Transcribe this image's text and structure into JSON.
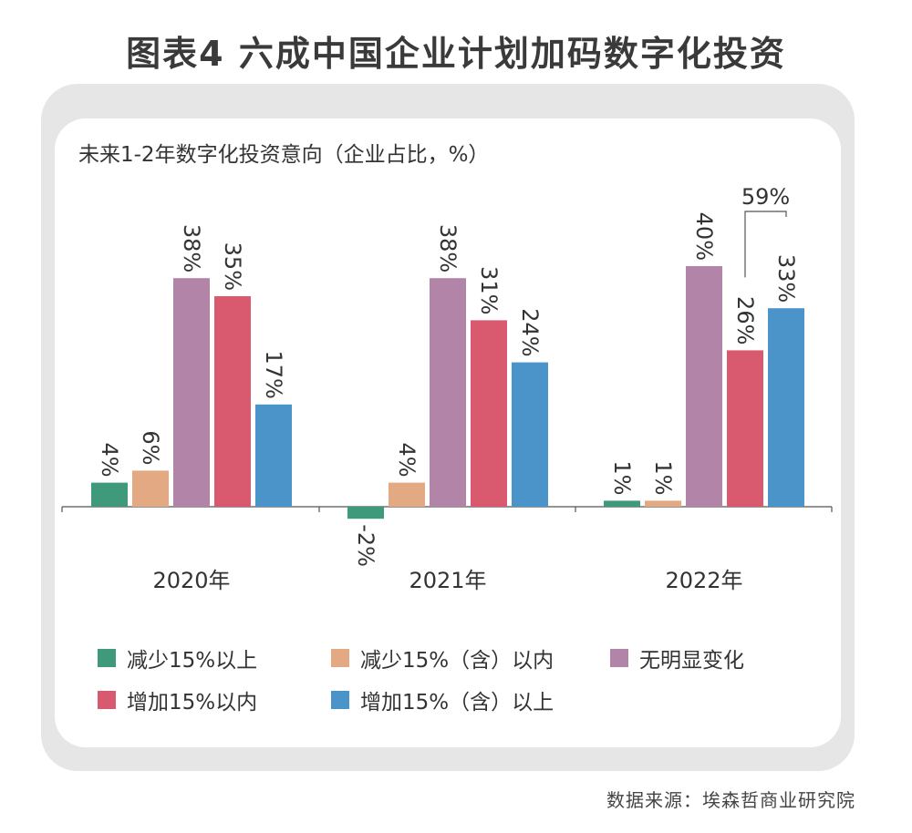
{
  "title": "图表4  六成中国企业计划加码数字化投资",
  "source": "数据来源：埃森哲商业研究院",
  "colors": {
    "decrease_over15": "#3f9a7c",
    "decrease_within15": "#e3a982",
    "no_change": "#b285a8",
    "increase_within15": "#d95a6f",
    "increase_over15": "#4b94c9"
  },
  "chart_data": {
    "type": "bar",
    "title": "未来1-2年数字化投资意向（企业占比，%）",
    "categories": [
      "2020年",
      "2021年",
      "2022年"
    ],
    "series": [
      {
        "name": "减少15%以上",
        "values": [
          4,
          -2,
          1
        ]
      },
      {
        "name": "减少15%（含）以内",
        "values": [
          6,
          4,
          1
        ]
      },
      {
        "name": "无明显变化",
        "values": [
          38,
          38,
          40
        ]
      },
      {
        "name": "增加15%以内",
        "values": [
          35,
          31,
          26
        ]
      },
      {
        "name": "增加15%（含）以上",
        "values": [
          17,
          24,
          33
        ]
      }
    ],
    "data_labels": [
      [
        "4%",
        "6%",
        "38%",
        "35%",
        "17%"
      ],
      [
        "-2%",
        "4%",
        "38%",
        "31%",
        "24%"
      ],
      [
        "1%",
        "1%",
        "40%",
        "26%",
        "33%"
      ]
    ],
    "annotation": {
      "text": "59%",
      "category": "2022年",
      "series": [
        "增加15%以内",
        "增加15%（含）以上"
      ]
    },
    "legend_position": "bottom",
    "grid": false
  }
}
